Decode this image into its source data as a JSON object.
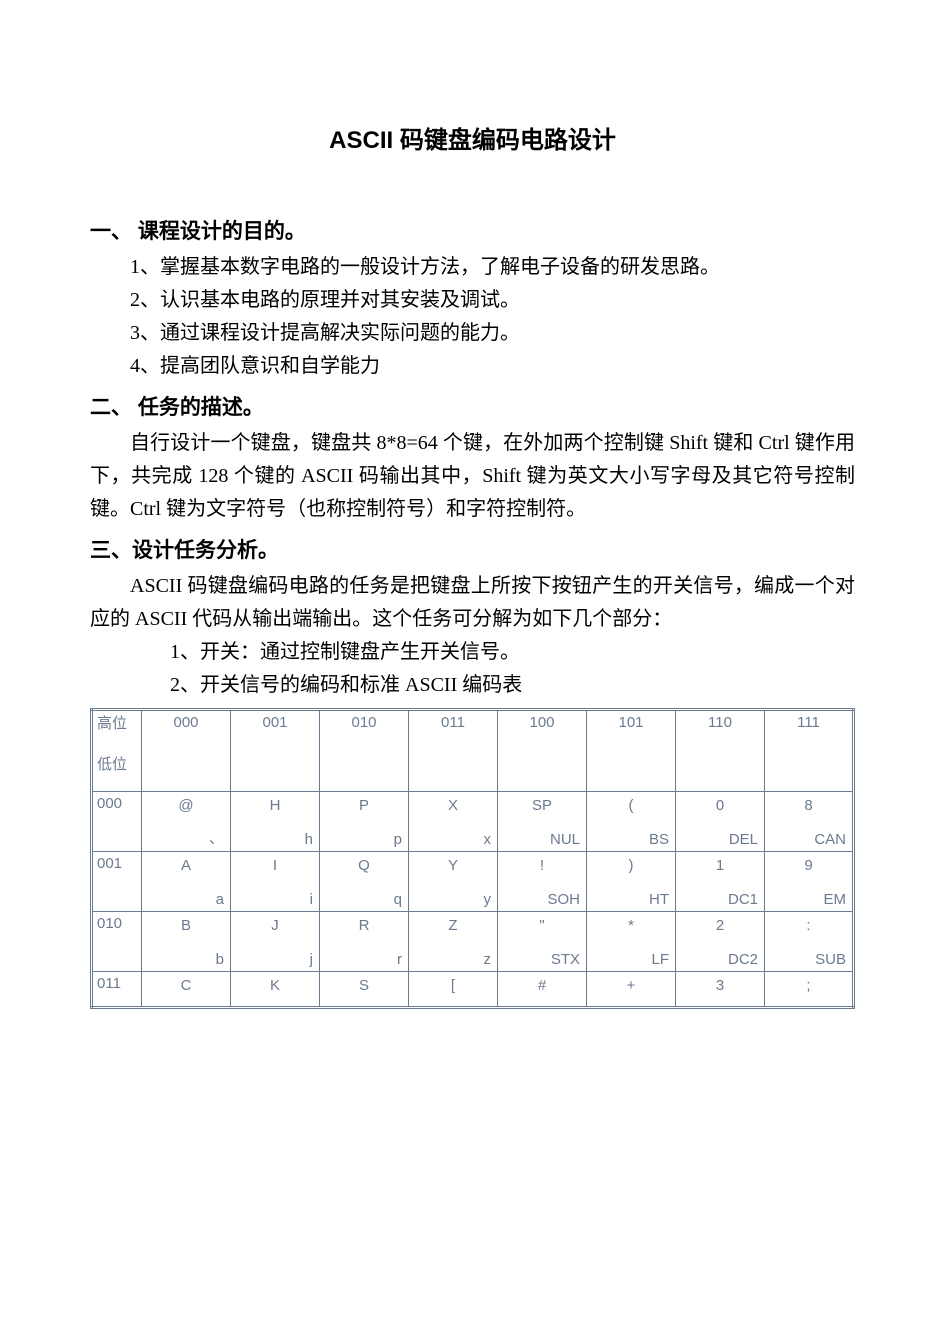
{
  "title": "ASCII 码键盘编码电路设计",
  "section1": {
    "heading": "一、 课程设计的目的。",
    "items": [
      "1、掌握基本数字电路的一般设计方法，了解电子设备的研发思路。",
      "2、认识基本电路的原理并对其安装及调试。",
      "3、通过课程设计提高解决实际问题的能力。",
      "4、提高团队意识和自学能力"
    ]
  },
  "section2": {
    "heading": "二、 任务的描述。",
    "para": "自行设计一个键盘，键盘共 8*8=64 个键，在外加两个控制键 Shift 键和 Ctrl 键作用下，共完成 128 个键的 ASCII 码输出其中，Shift 键为英文大小写字母及其它符号控制键。Ctrl 键为文字符号（也称控制符号）和字符控制符。"
  },
  "section3": {
    "heading": "三、设计任务分析。",
    "para": "ASCII 码键盘编码电路的任务是把键盘上所按下按钮产生的开关信号，编成一个对应的 ASCII 代码从输出端输出。这个任务可分解为如下几个部分：",
    "subs": [
      "1、开关：通过控制键盘产生开关信号。",
      "2、开关信号的编码和标准 ASCII 编码表"
    ]
  },
  "table": {
    "corner_top": "高位",
    "corner_bottom": "低位",
    "col_headers": [
      "000",
      "001",
      "010",
      "011",
      "100",
      "101",
      "110",
      "111"
    ],
    "rows": [
      {
        "head": "000",
        "cells": [
          [
            "@",
            "、"
          ],
          [
            "H",
            "h"
          ],
          [
            "P",
            "p"
          ],
          [
            "X",
            "x"
          ],
          [
            "SP",
            "NUL"
          ],
          [
            "(",
            "BS"
          ],
          [
            "0",
            "DEL"
          ],
          [
            "8",
            "CAN"
          ]
        ]
      },
      {
        "head": "001",
        "cells": [
          [
            "A",
            "a"
          ],
          [
            "I",
            "i"
          ],
          [
            "Q",
            "q"
          ],
          [
            "Y",
            "y"
          ],
          [
            "!",
            "SOH"
          ],
          [
            ")",
            "HT"
          ],
          [
            "1",
            "DC1"
          ],
          [
            "9",
            "EM"
          ]
        ]
      },
      {
        "head": "010",
        "cells": [
          [
            "B",
            "b"
          ],
          [
            "J",
            "j"
          ],
          [
            "R",
            "r"
          ],
          [
            "Z",
            "z"
          ],
          [
            "\"",
            "STX"
          ],
          [
            "*",
            "LF"
          ],
          [
            "2",
            "DC2"
          ],
          [
            ":",
            "SUB"
          ]
        ]
      },
      {
        "head": "011",
        "short": true,
        "cells": [
          [
            "C",
            ""
          ],
          [
            "K",
            ""
          ],
          [
            "S",
            ""
          ],
          [
            "[",
            ""
          ],
          [
            "#",
            ""
          ],
          [
            "+",
            ""
          ],
          [
            "3",
            ""
          ],
          [
            ";",
            ""
          ]
        ]
      }
    ],
    "colors": {
      "text": "#6b7a8f",
      "border": "#6b7a8f",
      "background": "#ffffff"
    },
    "font_size_body_pt": 15,
    "font_size_doc_pt": 20
  }
}
